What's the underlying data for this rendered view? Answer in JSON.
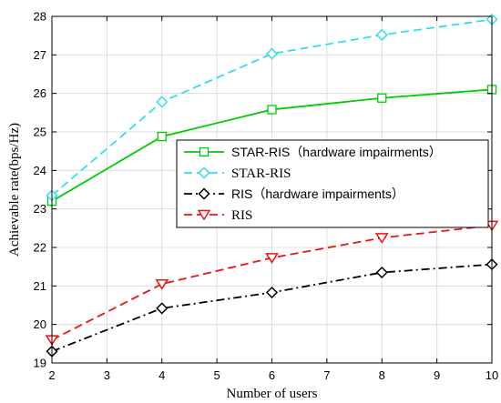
{
  "chart_data": {
    "type": "line",
    "xlabel": "Number of users",
    "ylabel": "Achievable rate(bps/Hz)",
    "xlim": [
      2,
      10
    ],
    "ylim": [
      19,
      28
    ],
    "xticks": [
      2,
      3,
      4,
      5,
      6,
      7,
      8,
      9,
      10
    ],
    "yticks": [
      19,
      20,
      21,
      22,
      23,
      24,
      25,
      26,
      27,
      28
    ],
    "grid": true,
    "legend_position": "center-right",
    "x": [
      2,
      4,
      6,
      8,
      10
    ],
    "series": [
      {
        "name": "STAR-RIS（hardware impairments）",
        "values": [
          23.2,
          24.88,
          25.58,
          25.88,
          26.1
        ],
        "color": "#00cc00",
        "line_style": "solid",
        "marker": "square",
        "legend_font": "sans"
      },
      {
        "name": "STAR-RIS",
        "values": [
          23.35,
          25.78,
          27.03,
          27.52,
          27.92
        ],
        "color": "#33ddee",
        "line_style": "dashed",
        "marker": "diamond",
        "legend_font": "serif"
      },
      {
        "name": "RIS（hardware impairments）",
        "values": [
          19.3,
          20.42,
          20.83,
          21.35,
          21.56
        ],
        "color": "#000000",
        "line_style": "dashdot",
        "marker": "diamond",
        "legend_font": "sans"
      },
      {
        "name": "RIS",
        "values": [
          19.6,
          21.05,
          21.73,
          22.25,
          22.57
        ],
        "color": "#ee1111",
        "line_style": "dashed",
        "marker": "triangle-down",
        "legend_font": "serif"
      }
    ]
  }
}
